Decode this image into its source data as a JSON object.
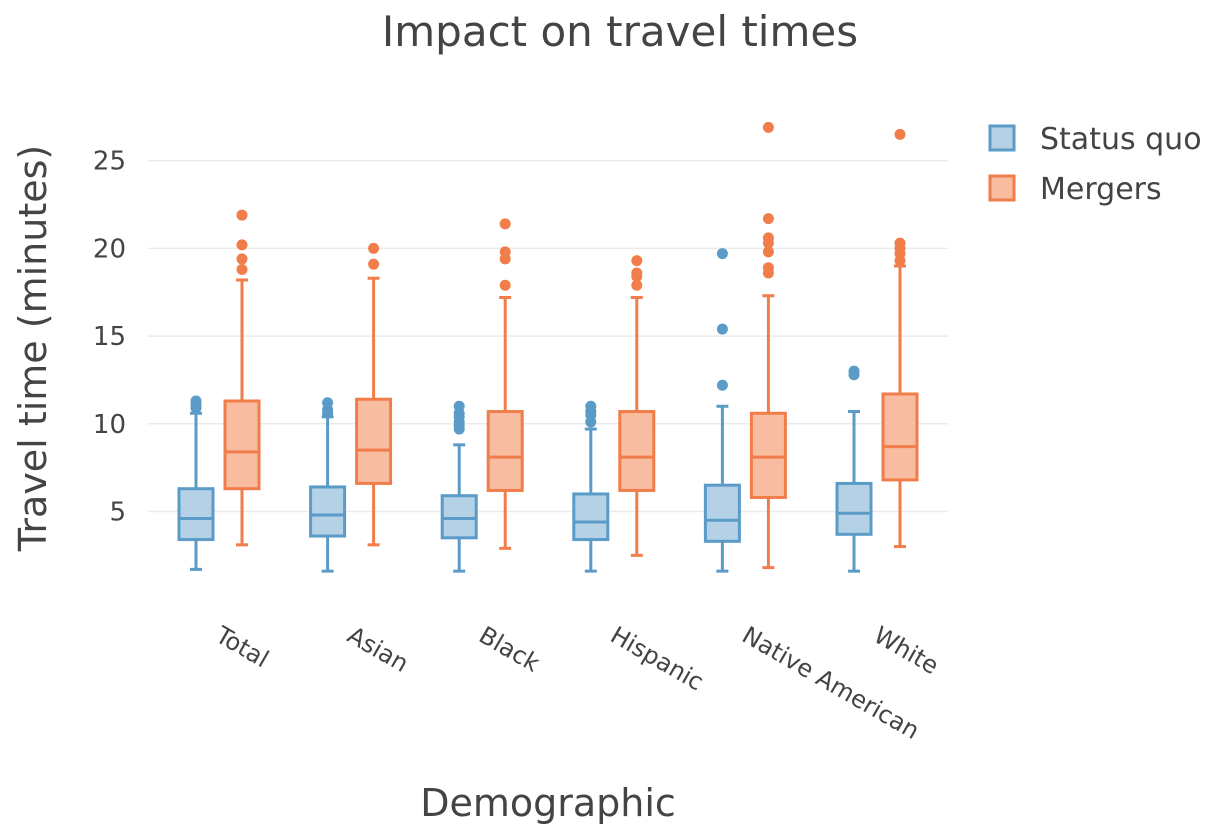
{
  "chart_data": {
    "type": "box",
    "title": "Impact on travel times",
    "xlabel": "Demographic",
    "ylabel": "Travel time (minutes)",
    "ylim": [
      0.5,
      28.5
    ],
    "yticks": [
      5,
      10,
      15,
      20,
      25
    ],
    "grid": true,
    "legend_position": "top-right",
    "categories": [
      "Total",
      "Asian",
      "Black",
      "Hispanic",
      "Native American",
      "White"
    ],
    "series": [
      {
        "name": "Status quo",
        "color": "#5b9bc8",
        "fill": "#b5d1e6",
        "boxes": [
          {
            "min": 1.7,
            "q1": 3.4,
            "median": 4.6,
            "q3": 6.3,
            "max": 10.6,
            "outliers": [
              10.9,
              11.1,
              11.3
            ]
          },
          {
            "min": 1.6,
            "q1": 3.6,
            "median": 4.8,
            "q3": 6.4,
            "max": 10.4,
            "outliers": [
              10.6,
              10.8,
              11.2
            ]
          },
          {
            "min": 1.6,
            "q1": 3.5,
            "median": 4.6,
            "q3": 5.9,
            "max": 8.8,
            "outliers": [
              9.7,
              9.9,
              10.1,
              10.4,
              10.6,
              11.0
            ]
          },
          {
            "min": 1.6,
            "q1": 3.4,
            "median": 4.4,
            "q3": 6.0,
            "max": 9.7,
            "outliers": [
              10.1,
              10.5,
              10.7,
              11.0
            ]
          },
          {
            "min": 1.6,
            "q1": 3.3,
            "median": 4.5,
            "q3": 6.5,
            "max": 11.0,
            "outliers": [
              12.2,
              15.4,
              19.7
            ]
          },
          {
            "min": 1.6,
            "q1": 3.7,
            "median": 4.9,
            "q3": 6.6,
            "max": 10.7,
            "outliers": [
              12.8,
              13.0
            ]
          }
        ]
      },
      {
        "name": "Mergers",
        "color": "#f07d4a",
        "fill": "#f8bca0",
        "boxes": [
          {
            "min": 3.1,
            "q1": 6.3,
            "median": 8.4,
            "q3": 11.3,
            "max": 18.2,
            "outliers": [
              18.8,
              19.4,
              20.2,
              21.9
            ]
          },
          {
            "min": 3.1,
            "q1": 6.6,
            "median": 8.5,
            "q3": 11.4,
            "max": 18.3,
            "outliers": [
              19.1,
              20.0
            ]
          },
          {
            "min": 2.9,
            "q1": 6.2,
            "median": 8.1,
            "q3": 10.7,
            "max": 17.2,
            "outliers": [
              17.9,
              19.4,
              19.8,
              21.4
            ]
          },
          {
            "min": 2.5,
            "q1": 6.2,
            "median": 8.1,
            "q3": 10.7,
            "max": 17.2,
            "outliers": [
              17.9,
              18.4,
              18.6,
              19.3
            ]
          },
          {
            "min": 1.8,
            "q1": 5.8,
            "median": 8.1,
            "q3": 10.6,
            "max": 17.3,
            "outliers": [
              18.6,
              18.9,
              19.8,
              20.3,
              20.6,
              21.7,
              26.9
            ]
          },
          {
            "min": 3.0,
            "q1": 6.8,
            "median": 8.7,
            "q3": 11.7,
            "max": 19.0,
            "outliers": [
              19.3,
              19.7,
              20.0,
              20.3,
              26.5
            ]
          }
        ]
      }
    ]
  }
}
